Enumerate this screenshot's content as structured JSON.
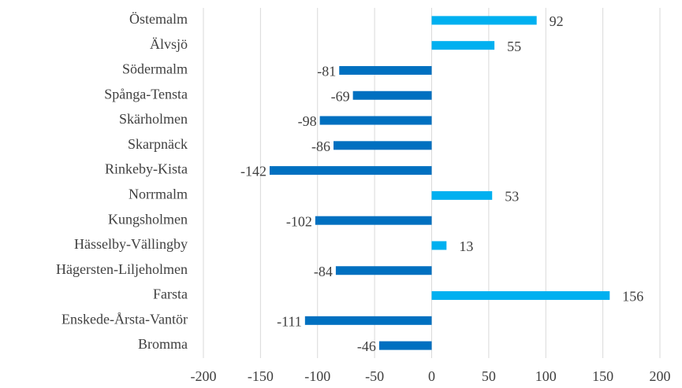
{
  "chart_data": {
    "type": "bar",
    "orientation": "horizontal",
    "categories": [
      "Östemalm",
      "Älvsjö",
      "Södermalm",
      "Spånga-Tensta",
      "Skärholmen",
      "Skarpnäck",
      "Rinkeby-Kista",
      "Norrmalm",
      "Kungsholmen",
      "Hässelby-Vällingby",
      "Hägersten-Liljeholmen",
      "Farsta",
      "Enskede-Årsta-Vantör",
      "Bromma"
    ],
    "values": [
      92,
      55,
      -81,
      -69,
      -98,
      -86,
      -142,
      53,
      -102,
      13,
      -84,
      156,
      -111,
      -46
    ],
    "positive_color": "#00b0f0",
    "negative_color": "#0070c0",
    "xlim": [
      -200,
      200
    ],
    "xticks": [
      -200,
      -150,
      -100,
      -50,
      0,
      50,
      100,
      150,
      200
    ],
    "grid": true
  }
}
